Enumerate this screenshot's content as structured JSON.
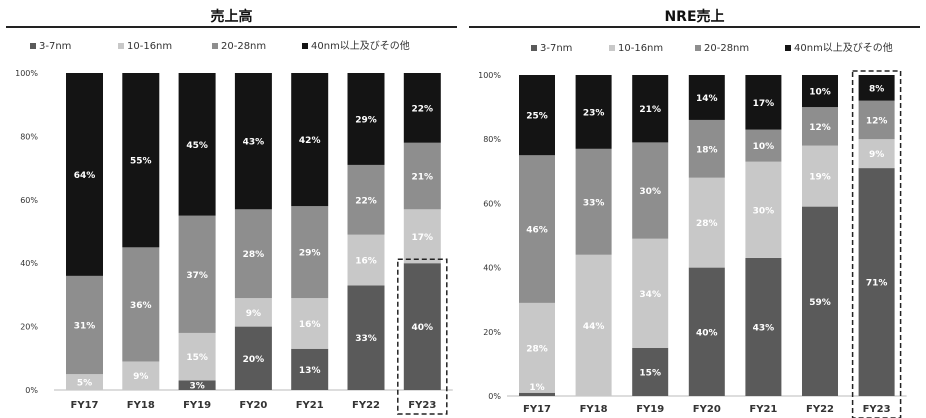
{
  "chart_data": [
    {
      "type": "bar",
      "stacked": true,
      "title": "売上高",
      "categories": [
        "FY17",
        "FY18",
        "FY19",
        "FY20",
        "FY21",
        "FY22",
        "FY23"
      ],
      "series": [
        {
          "name": "3-7nm",
          "color": "#5a5a5a",
          "values": [
            0,
            0,
            3,
            20,
            13,
            33,
            40
          ],
          "labels": [
            "",
            "",
            "3%",
            "20%",
            "13%",
            "33%",
            "40%"
          ]
        },
        {
          "name": "10-16nm",
          "color": "#c8c8c8",
          "values": [
            5,
            9,
            15,
            9,
            16,
            16,
            17
          ],
          "labels": [
            "5%",
            "9%",
            "15%",
            "9%",
            "16%",
            "16%",
            "17%"
          ]
        },
        {
          "name": "20-28nm",
          "color": "#8e8e8e",
          "values": [
            31,
            36,
            37,
            28,
            29,
            22,
            21
          ],
          "labels": [
            "31%",
            "36%",
            "37%",
            "28%",
            "29%",
            "22%",
            "21%"
          ]
        },
        {
          "name": "40nm以上及びその他",
          "color": "#141414",
          "values": [
            64,
            55,
            45,
            43,
            42,
            29,
            22
          ],
          "labels": [
            "64%",
            "55%",
            "45%",
            "43%",
            "42%",
            "29%",
            "22%"
          ]
        }
      ],
      "yticks": [
        "0%",
        "20%",
        "40%",
        "60%",
        "80%",
        "100%"
      ],
      "ylim": [
        0,
        100
      ],
      "legend_position": "top",
      "highlight": {
        "category": "FY23",
        "segment_top": 40
      }
    },
    {
      "type": "bar",
      "stacked": true,
      "title": "NRE売上",
      "categories": [
        "FY17",
        "FY18",
        "FY19",
        "FY20",
        "FY21",
        "FY22",
        "FY23"
      ],
      "series": [
        {
          "name": "3-7nm",
          "color": "#5a5a5a",
          "values": [
            1,
            0,
            15,
            40,
            43,
            59,
            71
          ],
          "labels": [
            "",
            "",
            "15%",
            "40%",
            "43%",
            "59%",
            "71%"
          ]
        },
        {
          "name": "10-16nm",
          "color": "#c8c8c8",
          "values": [
            28,
            44,
            34,
            28,
            30,
            19,
            9
          ],
          "labels": [
            "28%",
            "44%",
            "34%",
            "28%",
            "30%",
            "19%",
            "9%"
          ]
        },
        {
          "name": "20-28nm",
          "color": "#8e8e8e",
          "values": [
            46,
            33,
            30,
            18,
            10,
            12,
            12
          ],
          "labels": [
            "46%",
            "33%",
            "30%",
            "18%",
            "10%",
            "12%",
            "12%"
          ]
        },
        {
          "name": "40nm以上及びその他",
          "color": "#141414",
          "values": [
            25,
            23,
            21,
            14,
            17,
            10,
            8
          ],
          "labels": [
            "25%",
            "23%",
            "21%",
            "14%",
            "17%",
            "10%",
            "8%"
          ]
        }
      ],
      "extra_labels": [
        {
          "category": "FY17",
          "series": "10-16nm",
          "text": "1%"
        }
      ],
      "yticks": [
        "0%",
        "20%",
        "40%",
        "60%",
        "80%",
        "100%"
      ],
      "ylim": [
        0,
        100
      ],
      "legend_position": "top",
      "highlight": {
        "category": "FY23",
        "segment_top": 100
      }
    }
  ]
}
